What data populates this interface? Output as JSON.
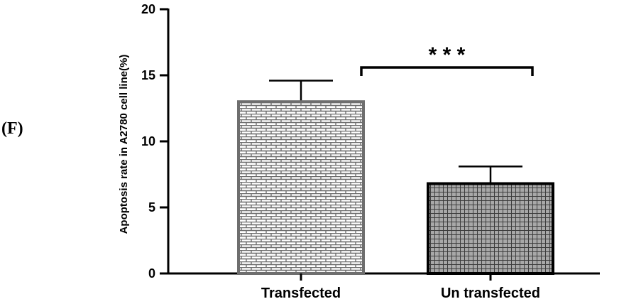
{
  "panel_label": "(F)",
  "chart_data": {
    "type": "bar",
    "categories": [
      "Transfected",
      "Un transfected"
    ],
    "values": [
      13.0,
      6.8
    ],
    "errors": [
      1.6,
      1.3
    ],
    "ylabel": "Apoptosis rate in A2780 cell line(%)",
    "ylim": [
      0,
      20
    ],
    "yticks": [
      0,
      5,
      10,
      15,
      20
    ],
    "ytick_labels": [
      "0",
      "5",
      "10",
      "15",
      "20"
    ],
    "significance": {
      "between": [
        0,
        1
      ],
      "label": "* * *"
    },
    "bar_patterns": [
      "brick",
      "grid"
    ],
    "colors": {
      "bar_fill": "#9a9a9a",
      "bar_stroke_0": "#6e6e6e",
      "bar_stroke_1": "#000000",
      "axis": "#000000"
    },
    "grid": false
  }
}
